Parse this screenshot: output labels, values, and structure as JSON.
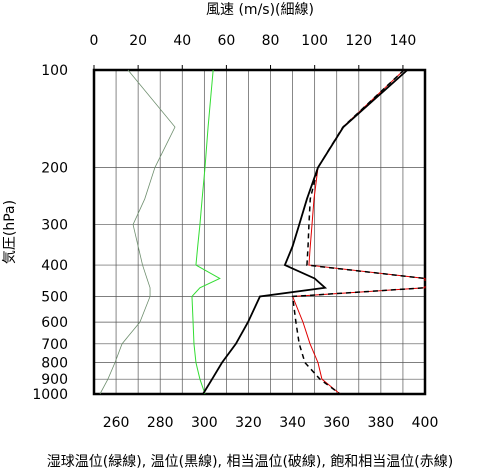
{
  "chart_data": {
    "type": "line",
    "title": "風速 (m/s)(細線)",
    "ylabel": "気圧(hPa)",
    "xlabel": "湿球温位(緑線), 温位(黒線), 相当温位(破線), 飽和相当温位(赤線)",
    "y": [
      100,
      150,
      200,
      250,
      300,
      350,
      400,
      440,
      470,
      500,
      600,
      700,
      800,
      900,
      1000
    ],
    "ylim": [
      1000,
      100
    ],
    "ylog": true,
    "yticks": [
      100,
      200,
      300,
      400,
      500,
      600,
      700,
      800,
      900,
      1000
    ],
    "xlim": [
      250,
      400
    ],
    "xticks": [
      260,
      280,
      300,
      320,
      340,
      360,
      380,
      400
    ],
    "xminorticks": [
      250,
      270,
      290,
      310,
      330,
      350,
      370,
      390
    ],
    "x2lim": [
      0,
      150
    ],
    "x2ticks": [
      0,
      20,
      40,
      60,
      80,
      100,
      120,
      140
    ],
    "grid": true,
    "series": [
      {
        "name": "風速",
        "axis": "x2",
        "color": "#6f8f6f",
        "width": 0.8,
        "dash": false,
        "values": [
          15.4,
          36.7,
          27.6,
          23,
          17.7,
          20,
          22,
          24,
          25.4,
          25.4,
          20.8,
          12.7,
          9.5,
          6.3,
          2.7
        ]
      },
      {
        "name": "湿球温位",
        "color": "#33dd33",
        "width": 1,
        "dash": false,
        "values": [
          304,
          301.7,
          300.3,
          299,
          298,
          297,
          296.2,
          307,
          298,
          294.4,
          294.9,
          295.3,
          296.2,
          298,
          300.3
        ]
      },
      {
        "name": "飽和相当温位",
        "color": "#e00000",
        "width": 1,
        "dash": false,
        "values": [
          390.5,
          362.8,
          351.5,
          349.7,
          348.8,
          348,
          347.4,
          400,
          400,
          340,
          344.7,
          347.9,
          351.5,
          353.3,
          361.5
        ]
      },
      {
        "name": "相当温位",
        "color": "#000000",
        "width": 1.5,
        "dash": true,
        "values": [
          390.5,
          362.8,
          351.5,
          348,
          347.4,
          347,
          346.5,
          400,
          400,
          340,
          341.5,
          343,
          345.6,
          352.4,
          361.5
        ]
      },
      {
        "name": "温位",
        "color": "#000000",
        "width": 1.8,
        "dash": false,
        "values": [
          392,
          363,
          351.5,
          346.5,
          343,
          340,
          336.5,
          350,
          354.7,
          325.2,
          319.8,
          314.3,
          308,
          303.5,
          299.4
        ]
      }
    ]
  }
}
